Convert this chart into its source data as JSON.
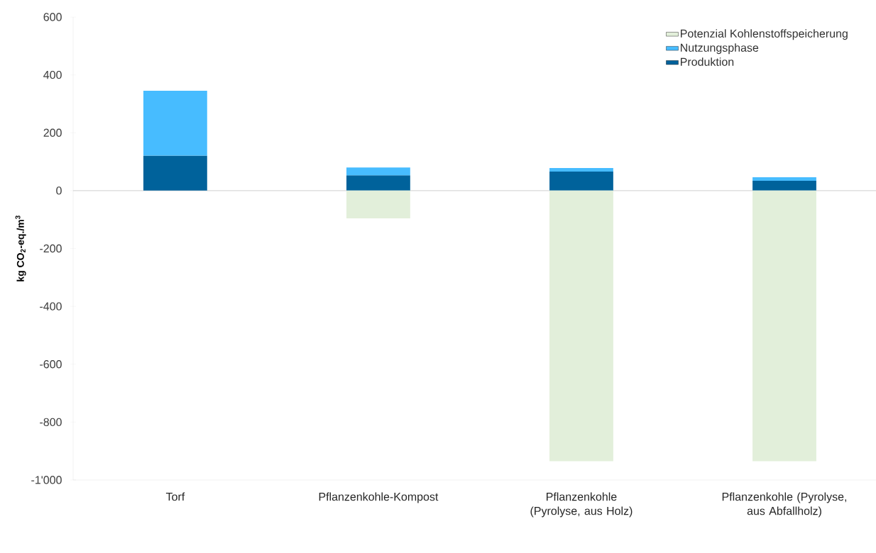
{
  "chart_data": {
    "type": "bar",
    "stacked": true,
    "ylabel": "kg CO$_{2}$-eq./m$^{3}$",
    "categories": [
      "Torf",
      "Pflanzenkohle-Kompost",
      "Pflanzenkohle (Pyrolyse, aus Holz)",
      "Pflanzenkohle (Pyrolyse, aus Abfallholz)"
    ],
    "series": [
      {
        "name": "Produktion",
        "color": "#00629b",
        "values": [
          121,
          53,
          66,
          34
        ]
      },
      {
        "name": "Nutzungsphase",
        "color": "#47bcff",
        "values": [
          224,
          27,
          12,
          12
        ]
      },
      {
        "name": "Potenzial Kohlenstoffspeicherung",
        "color": "#e2efda",
        "values": [
          0,
          -96,
          -935,
          -935
        ]
      }
    ],
    "ylim": [
      -1000,
      600
    ],
    "yticks": [
      {
        "value": -1000,
        "label": "-1'000"
      },
      -800,
      -600,
      -400,
      -200,
      0,
      200,
      400,
      600
    ],
    "legend": "top right"
  }
}
